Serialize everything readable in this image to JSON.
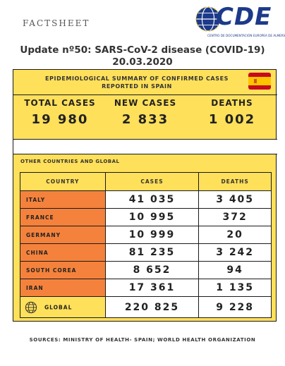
{
  "header": {
    "factsheet": "FACTSHEET",
    "logo_text": "CDE",
    "logo_subtitle": "CENTRO DE DOCUMENTACIÓN EUROPEA DE ALMERÍA",
    "update_line1": "Update nº50: SARS-CoV-2 disease (COVID-19)",
    "update_line2": "20.03.2020"
  },
  "summary": {
    "title_line1": "EPIDEMIOLOGICAL SUMMARY OF CONFIRMED CASES",
    "title_line2": "REPORTED IN SPAIN",
    "flag_icon": "spain-flag-icon",
    "total_cases_label": "TOTAL CASES",
    "total_cases_value": "19 980",
    "new_cases_label": "NEW CASES",
    "new_cases_value": "2 833",
    "deaths_label": "DEATHS",
    "deaths_value": "1 002"
  },
  "other": {
    "section_label": "OTHER COUNTRIES AND GLOBAL",
    "headers": {
      "country": "COUNTRY",
      "cases": "CASES",
      "deaths": "DEATHS"
    },
    "rows": [
      {
        "country": "ITALY",
        "cases": "41 035",
        "deaths": "3 405"
      },
      {
        "country": "FRANCE",
        "cases": "10 995",
        "deaths": "372"
      },
      {
        "country": "GERMANY",
        "cases": "10 999",
        "deaths": "20"
      },
      {
        "country": "CHINA",
        "cases": "81 235",
        "deaths": "3 242"
      },
      {
        "country": "SOUTH COREA",
        "cases": "8 652",
        "deaths": "94"
      },
      {
        "country": "IRAN",
        "cases": "17 361",
        "deaths": "1 135"
      }
    ],
    "global": {
      "label": "GLOBAL",
      "icon": "globe-icon",
      "cases": "220 825",
      "deaths": "9 228"
    }
  },
  "footer": {
    "sources": "SOURCES: MINISTRY OF HEALTH- SPAIN; WORLD HEALTH ORGANIZATION"
  },
  "colors": {
    "yellow": "#ffe05a",
    "orange": "#f4823c",
    "brand_blue": "#1d3a8a"
  }
}
